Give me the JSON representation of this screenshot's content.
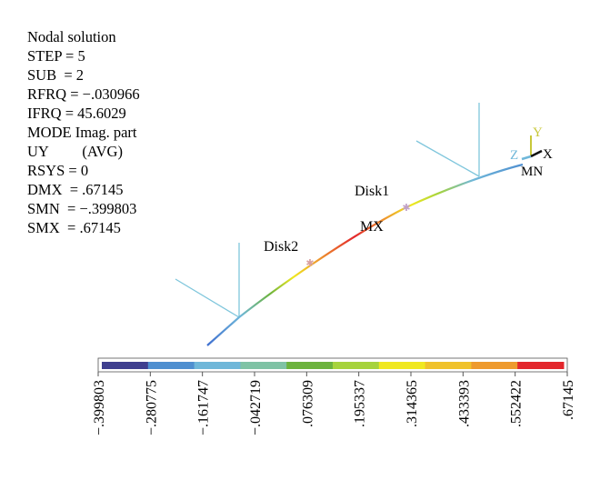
{
  "info_lines": [
    "Nodal solution",
    "STEP = 5",
    "SUB  = 2",
    "RFRQ = −.030966",
    "IFRQ = 45.6029",
    "MODE Imag. part",
    "UY         (AVG)",
    "RSYS = 0",
    "DMX  = .67145",
    "SMN  = −.399803",
    "SMX  = .67145"
  ],
  "labels": {
    "disk1": "Disk1",
    "disk2": "Disk2",
    "mx": "MX",
    "mn": "MN"
  },
  "triad": {
    "x": "X",
    "y": "Y",
    "z": "Z"
  },
  "legend": {
    "colors": [
      "#3f3f8f",
      "#4f8fd0",
      "#6fb7d9",
      "#7fc3a5",
      "#6cb33d",
      "#a6d33c",
      "#f0e820",
      "#f0c22b",
      "#ee9a2d",
      "#e3262c"
    ],
    "ticks": [
      "−.399803",
      "−.280775",
      "−.161747",
      "−.042719",
      ".076309",
      ".195337",
      ".314365",
      ".433393",
      ".552422",
      ".67145"
    ]
  }
}
